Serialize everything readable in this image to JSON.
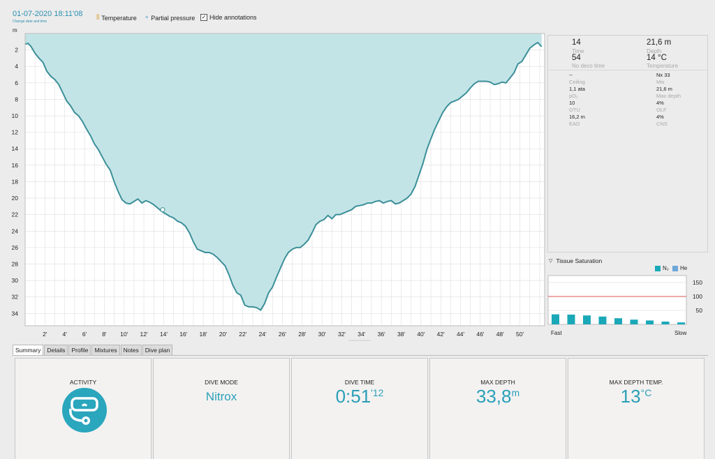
{
  "header": {
    "datetime": "01-07-2020 18:11'08",
    "datetime_sub": "Change date and time",
    "toggles": [
      {
        "label": "Temperature",
        "icon": "thermometer-icon"
      },
      {
        "label": "Partial pressure",
        "icon": "bubbles-icon"
      },
      {
        "label": "Hide annotations",
        "icon": "checkbox-icon",
        "checked": true
      }
    ]
  },
  "chart_data": {
    "type": "area",
    "ylabel": "m",
    "yticks": [
      "2",
      "4",
      "6",
      "8",
      "10",
      "12",
      "14",
      "16",
      "18",
      "20",
      "22",
      "24",
      "26",
      "28",
      "30",
      "32",
      "34"
    ],
    "xticks": [
      "2'",
      "4'",
      "6'",
      "8'",
      "10'",
      "12'",
      "14'",
      "16'",
      "18'",
      "20'",
      "22'",
      "24'",
      "26'",
      "28'",
      "30'",
      "32'",
      "34'",
      "36'",
      "38'",
      "40'",
      "42'",
      "44'",
      "46'",
      "48'",
      "50'"
    ],
    "x_range_min": [
      0,
      52.5
    ],
    "y_range_m": [
      0,
      35.5
    ],
    "fill_color": "#c3e4e6",
    "line_color": "#3b8f99",
    "series": [
      {
        "x": [
          0,
          0.3,
          0.6,
          1,
          1.4,
          1.8,
          2.2,
          2.6,
          3,
          3.4,
          3.8,
          4.2,
          4.6,
          5,
          5.4,
          5.8,
          6.2,
          6.6,
          7,
          7.4,
          7.8,
          8.2,
          8.6,
          9,
          9.4,
          9.8,
          10.2,
          10.6,
          11,
          11.4,
          11.8,
          12.2,
          12.6,
          13,
          13.4,
          13.8,
          14.2,
          14.6,
          15,
          15.4,
          15.8,
          16.2,
          16.6,
          17,
          17.4,
          17.8,
          18.2,
          18.6,
          19,
          19.4,
          19.8,
          20.2,
          20.6,
          21,
          21.4,
          21.8,
          22.2,
          22.6,
          23,
          23.4,
          23.8,
          24.2,
          24.6,
          25,
          25.4,
          25.8,
          26.2,
          26.6,
          27,
          27.4,
          27.8,
          28.2,
          28.6,
          29,
          29.4,
          29.8,
          30.2,
          30.6,
          31,
          31.4,
          31.8,
          32.2,
          32.6,
          33,
          33.4,
          33.8,
          34.2,
          34.6,
          35,
          35.4,
          35.8,
          36.2,
          36.6,
          37,
          37.4,
          37.8,
          38.2,
          38.6,
          39,
          39.4,
          39.8,
          40.2,
          40.6,
          41,
          41.4,
          41.8,
          42.2,
          42.6,
          43,
          43.4,
          43.8,
          44.2,
          44.6,
          45,
          45.4,
          45.8,
          46.2,
          46.6,
          47,
          47.4,
          47.8,
          48.2,
          48.6,
          49,
          49.4,
          49.8,
          50.2,
          50.6,
          51,
          51.4,
          51.8,
          52.2
        ],
        "y": [
          1.3,
          1.2,
          1.6,
          2.4,
          3.0,
          3.5,
          4.6,
          5.2,
          5.6,
          6.2,
          7.2,
          8.2,
          8.8,
          9.6,
          10.0,
          10.7,
          11.6,
          12.4,
          13.4,
          14.1,
          15.0,
          15.9,
          16.6,
          18.0,
          19.2,
          20.2,
          20.6,
          20.7,
          20.4,
          20.1,
          20.6,
          20.3,
          20.5,
          20.8,
          21.2,
          21.6,
          21.9,
          22.2,
          22.4,
          22.8,
          23.0,
          23.4,
          24.2,
          25.3,
          26.2,
          26.4,
          26.6,
          26.6,
          26.8,
          27.2,
          27.7,
          28.2,
          29.3,
          30.6,
          31.5,
          31.8,
          33.0,
          33.2,
          33.2,
          33.3,
          33.6,
          32.8,
          31.5,
          30.8,
          29.6,
          28.5,
          27.4,
          26.6,
          26.2,
          26.0,
          26.0,
          25.6,
          25.1,
          24.2,
          23.2,
          22.8,
          22.6,
          22.1,
          22.5,
          22.0,
          22.0,
          21.8,
          21.6,
          21.4,
          21.0,
          20.9,
          20.8,
          20.6,
          20.6,
          20.4,
          20.3,
          20.6,
          20.4,
          20.3,
          20.7,
          20.6,
          20.3,
          20.0,
          19.5,
          18.6,
          17.2,
          15.8,
          14.1,
          12.8,
          11.6,
          10.6,
          9.6,
          8.9,
          8.4,
          8.2,
          8.0,
          7.6,
          7.2,
          6.6,
          6.1,
          5.8,
          5.8,
          5.8,
          5.9,
          6.2,
          6.1,
          5.9,
          6.0,
          5.4,
          4.8,
          3.7,
          3.4,
          2.6,
          1.8,
          1.4,
          1.1,
          1.6
        ]
      }
    ],
    "marker": {
      "x": 13.9,
      "y": 21.4
    }
  },
  "info": {
    "time": "14",
    "time_label": "Time",
    "depth": "21,6 m",
    "depth_label": "Depth",
    "nodeco": "54",
    "nodeco_label": "No deco time",
    "temp": "14 °C",
    "temp_label": "Temperature",
    "rows": [
      {
        "lv": "--",
        "ll": "Ceiling",
        "rv": "Nx 33",
        "rl": "Mix"
      },
      {
        "lv": "1,1 ata",
        "ll": "pO₂",
        "rv": "21,6 m",
        "rl": "Max depth"
      },
      {
        "lv": "10",
        "ll": "OTU",
        "rv": "4%",
        "rl": "OLF"
      },
      {
        "lv": "16,2 m",
        "ll": "EAD",
        "rv": "4%",
        "rl": "CNS"
      }
    ]
  },
  "tissue": {
    "title": "Tissue Saturation",
    "legend_n2": "N₂",
    "legend_he": "He",
    "n2_color": "#1aa8b8",
    "he_color": "#6fa6d9",
    "limit_color": "#d9534f",
    "yticks": [
      "150",
      "100",
      "50"
    ],
    "x_left": "Fast",
    "x_right": "Slow",
    "values_pct": [
      36,
      35,
      32,
      28,
      22,
      17,
      14,
      10,
      7
    ]
  },
  "tabs": [
    "Summary",
    "Details",
    "Profile",
    "Mixtures",
    "Notes",
    "Dive plan"
  ],
  "summary": {
    "activity_title": "ACTIVITY",
    "activity_icon": "diving-mask-icon",
    "mode_title": "DIVE MODE",
    "mode_value": "Nitrox",
    "time_title": "DIVE TIME",
    "time_value": "0:51",
    "time_sup": "'12",
    "depth_title": "MAX DEPTH",
    "depth_value": "33,8",
    "depth_unit": "m",
    "temp_title": "MAX DEPTH TEMP.",
    "temp_value": "13",
    "temp_unit": "°C"
  }
}
